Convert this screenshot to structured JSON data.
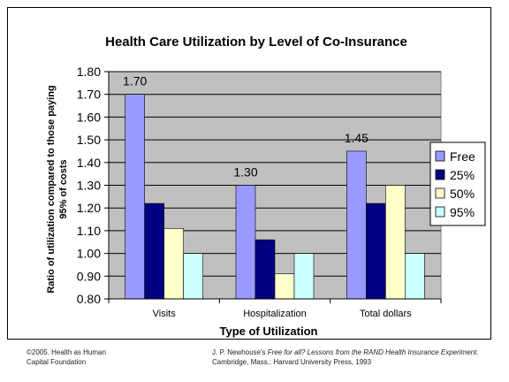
{
  "chart_data": {
    "type": "bar",
    "title": "Health Care Utilization by Level of Co-Insurance",
    "xlabel": "Type of Utilization",
    "ylabel": "Ratio of utilization compared to those paying 95% of costs",
    "ylabel_lines": [
      "Ratio of utilization compared to those paying",
      "95% of costs"
    ],
    "categories": [
      "Visits",
      "Hospitalization",
      "Total dollars"
    ],
    "ylim": [
      0.8,
      1.8
    ],
    "yticks": [
      "0.80",
      "0.90",
      "1.00",
      "1.10",
      "1.20",
      "1.30",
      "1.40",
      "1.50",
      "1.60",
      "1.70",
      "1.80"
    ],
    "gridlines": true,
    "legend_position": "right",
    "series": [
      {
        "name": "Free",
        "values": [
          1.7,
          1.3,
          1.45
        ],
        "color": "#9999ff",
        "data_labels": [
          "1.70",
          "1.30",
          "1.45"
        ]
      },
      {
        "name": "25%",
        "values": [
          1.22,
          1.06,
          1.22
        ],
        "color": "#000080"
      },
      {
        "name": "50%",
        "values": [
          1.11,
          0.91,
          1.3
        ],
        "color": "#ffffcc"
      },
      {
        "name": "95%",
        "values": [
          1.0,
          1.0,
          1.0
        ],
        "color": "#ccffff"
      }
    ],
    "plot_background": "#c0c0c0"
  },
  "footer": {
    "left_line1": "©2005. Health as Human",
    "left_line2": "Capital Foundation",
    "right_author": "J. P. Newhouse's",
    "right_title": "Free for all? Lessons from the RAND Health Insurance Experiment.",
    "right_line2": "Cambridge, Mass.: Harvard University Press, 1993"
  }
}
